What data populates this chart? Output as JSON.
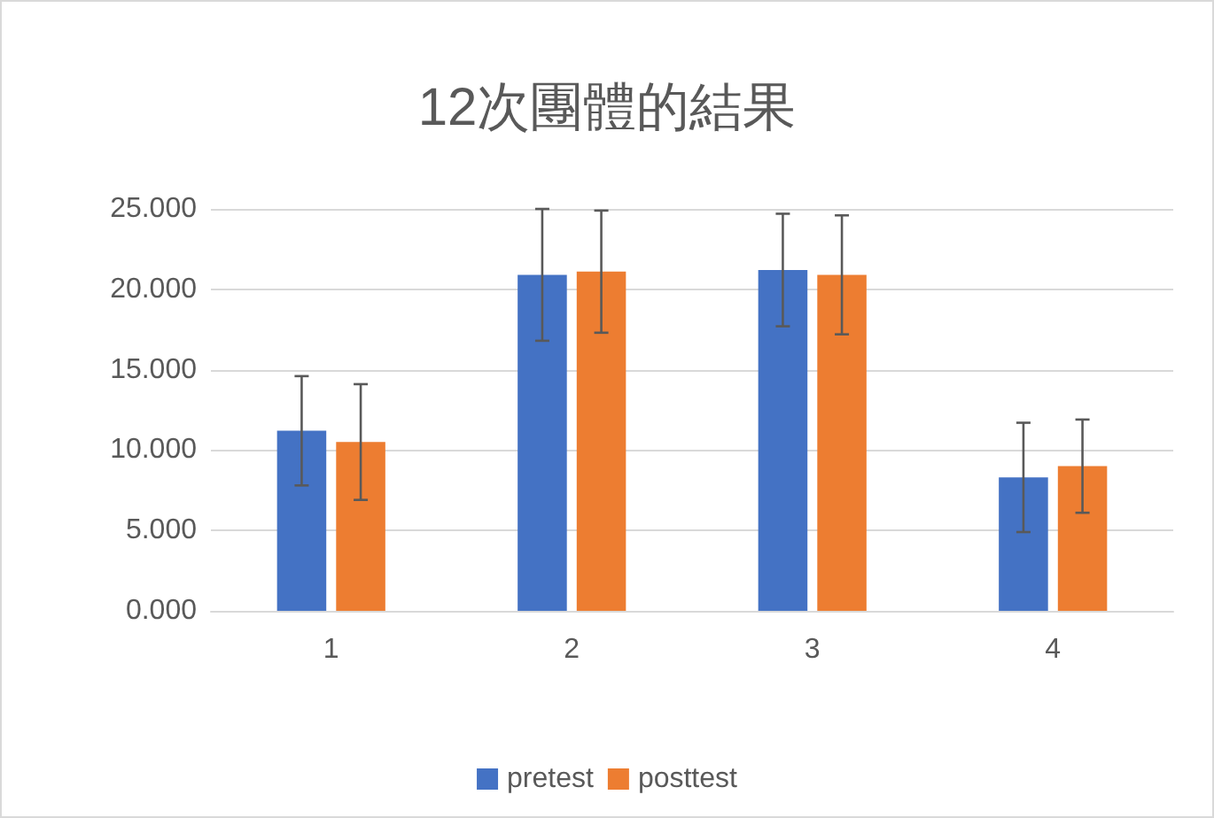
{
  "chart_data": {
    "type": "bar",
    "title": "12次團體的結果",
    "categories": [
      "1",
      "2",
      "3",
      "4"
    ],
    "series": [
      {
        "name": "pretest",
        "color": "#4472c4",
        "values": [
          11.2,
          20.9,
          21.2,
          8.3
        ],
        "errors": [
          3.4,
          4.1,
          3.5,
          3.4
        ]
      },
      {
        "name": "posttest",
        "color": "#ed7d31",
        "values": [
          10.5,
          21.1,
          20.9,
          9.0
        ],
        "errors": [
          3.6,
          3.8,
          3.7,
          2.9
        ]
      }
    ],
    "ylim": [
      0,
      25
    ],
    "yticks": [
      {
        "value": 0,
        "label": "0.000"
      },
      {
        "value": 5,
        "label": "5.000"
      },
      {
        "value": 10,
        "label": "10.000"
      },
      {
        "value": 15,
        "label": "15.000"
      },
      {
        "value": 20,
        "label": "20.000"
      },
      {
        "value": 25,
        "label": "25.000"
      }
    ],
    "grid": "y",
    "legend": "bottom"
  }
}
